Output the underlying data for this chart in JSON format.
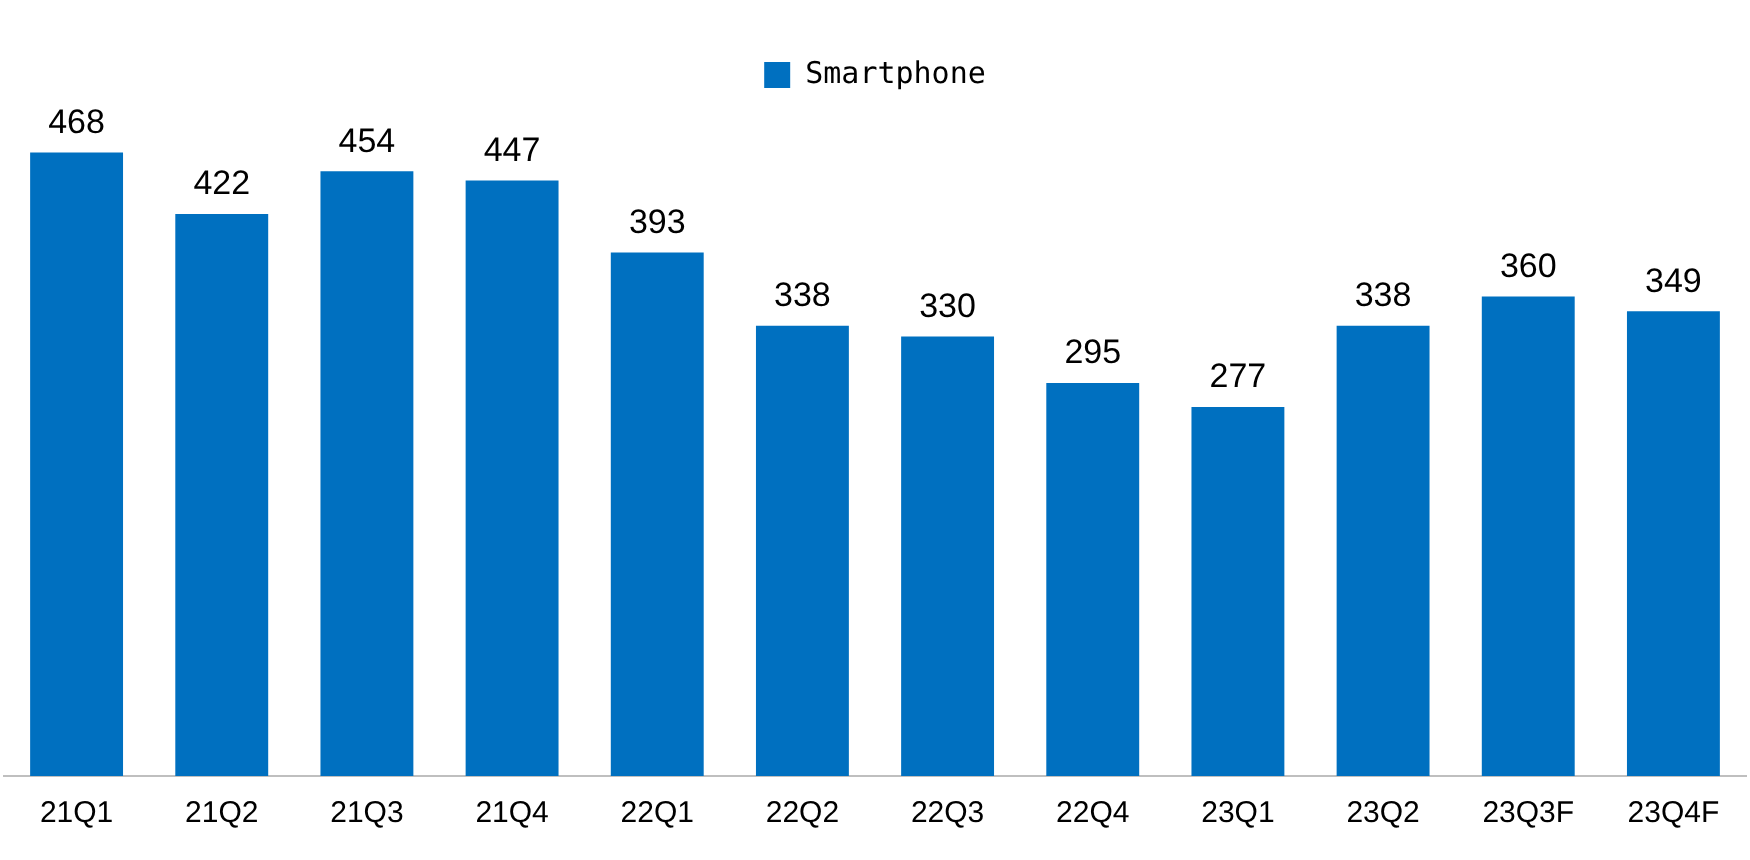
{
  "chart_data": {
    "type": "bar",
    "categories": [
      "21Q1",
      "21Q2",
      "21Q3",
      "21Q4",
      "22Q1",
      "22Q2",
      "22Q3",
      "22Q4",
      "23Q1",
      "23Q2",
      "23Q3F",
      "23Q4F"
    ],
    "series": [
      {
        "name": "Smartphone",
        "color": "#0070c0",
        "values": [
          468,
          422,
          454,
          447,
          393,
          338,
          330,
          295,
          277,
          338,
          360,
          349
        ]
      }
    ],
    "data_labels": true,
    "legend": "top",
    "grid": false
  }
}
